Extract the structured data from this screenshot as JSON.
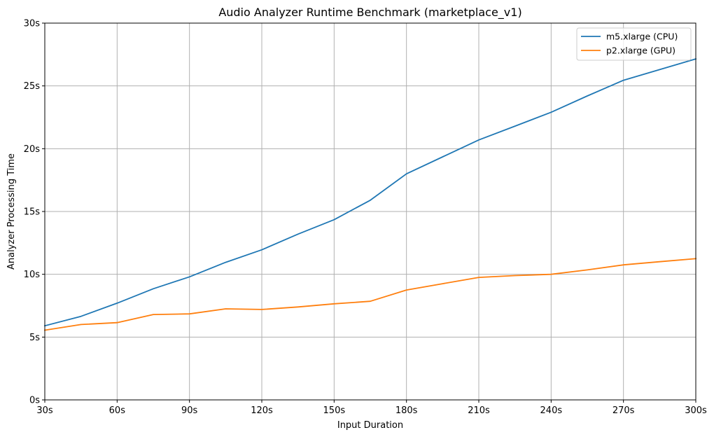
{
  "chart_data": {
    "type": "line",
    "title": "Audio Analyzer Runtime Benchmark (marketplace_v1)",
    "xlabel": "Input Duration",
    "ylabel": "Analyzer Processing Time",
    "x": [
      30,
      45,
      60,
      75,
      90,
      105,
      120,
      135,
      150,
      165,
      180,
      195,
      210,
      225,
      240,
      255,
      270,
      285,
      300
    ],
    "xlim": [
      30,
      300
    ],
    "ylim": [
      0,
      30
    ],
    "xticks": [
      30,
      60,
      90,
      120,
      150,
      180,
      210,
      240,
      270,
      300
    ],
    "xtick_labels": [
      "30s",
      "60s",
      "90s",
      "120s",
      "150s",
      "180s",
      "210s",
      "240s",
      "270s",
      "300s"
    ],
    "yticks": [
      0,
      5,
      10,
      15,
      20,
      25,
      30
    ],
    "ytick_labels": [
      "0s",
      "5s",
      "10s",
      "15s",
      "20s",
      "25s",
      "30s"
    ],
    "grid": true,
    "legend_position": "top-right",
    "series": [
      {
        "name": "m5.xlarge (CPU)",
        "color": "#1f77b4",
        "values": [
          5.9,
          6.65,
          7.7,
          8.85,
          9.8,
          10.95,
          11.95,
          13.2,
          14.35,
          15.9,
          18.0,
          19.35,
          20.7,
          21.8,
          22.9,
          24.2,
          25.45,
          26.3,
          27.15
        ]
      },
      {
        "name": "p2.xlarge (GPU)",
        "color": "#ff7f0e",
        "values": [
          5.55,
          6.0,
          6.15,
          6.8,
          6.85,
          7.25,
          7.2,
          7.4,
          7.65,
          7.85,
          8.75,
          9.25,
          9.75,
          9.9,
          10.0,
          10.35,
          10.75,
          11.0,
          11.25
        ]
      }
    ]
  }
}
